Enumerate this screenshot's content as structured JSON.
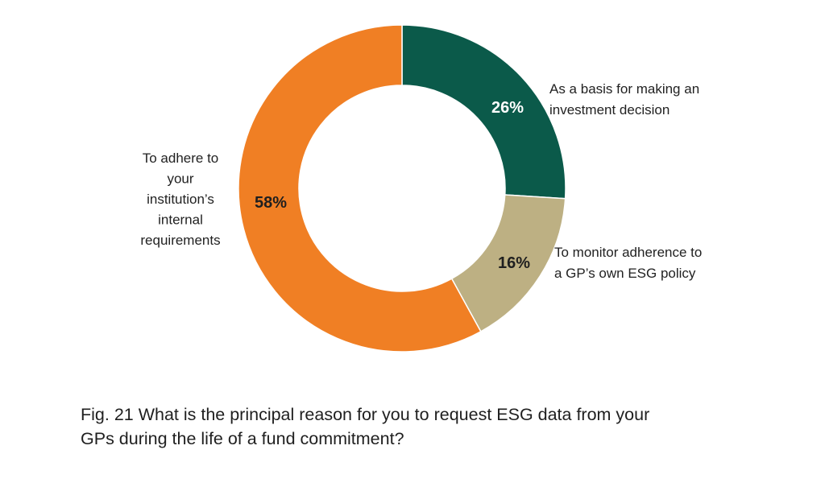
{
  "chart_data": {
    "type": "pie",
    "variant": "donut",
    "slices": [
      {
        "pct_label": "26%",
        "value": 26,
        "color": "#0b5a4a",
        "pct_color": "#ffffff",
        "category_lines": [
          "As a basis for making an",
          "investment decision"
        ]
      },
      {
        "pct_label": "16%",
        "value": 16,
        "color": "#bdb083",
        "pct_color": "#1f1f1f",
        "category_lines": [
          "To monitor adherence to",
          "a GP’s own ESG policy"
        ]
      },
      {
        "pct_label": "58%",
        "value": 58,
        "color": "#f07f24",
        "pct_color": "#1f1f1f",
        "category_lines": [
          "To adhere to",
          "your",
          "institution’s",
          "internal",
          "requirements"
        ]
      }
    ],
    "legend": "none"
  },
  "caption": {
    "line1": "Fig. 21 What is the principal reason for you to request ESG data from your",
    "line2": "GPs during the life of a fund commitment?"
  }
}
